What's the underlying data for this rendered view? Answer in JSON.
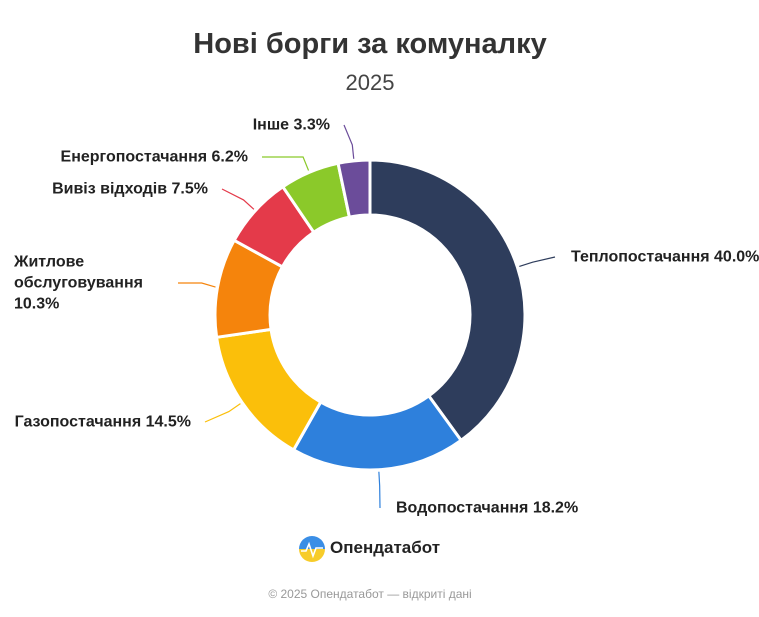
{
  "chart_data": {
    "type": "pie",
    "title": "Нові борги за комуналку",
    "subtitle": "2025",
    "categories": [
      "Теплопостачання",
      "Водопостачання",
      "Газопостачання",
      "Житлове обслуговування",
      "Вивіз відходів",
      "Енергопостачання",
      "Інше"
    ],
    "values": [
      40.0,
      18.2,
      14.5,
      10.3,
      7.5,
      6.2,
      3.3
    ],
    "value_labels": [
      "40.0%",
      "18.2%",
      "14.5%",
      "10.3%",
      "7.5%",
      "6.2%",
      "3.3%"
    ],
    "colors": [
      "#2e3d5c",
      "#2e80dc",
      "#fbbf0a",
      "#f5840c",
      "#e43a4a",
      "#8bc92a",
      "#6b4c9a"
    ]
  },
  "brand": "Опендатабот",
  "footer": "© 2025 Опендатабот — відкриті дані"
}
